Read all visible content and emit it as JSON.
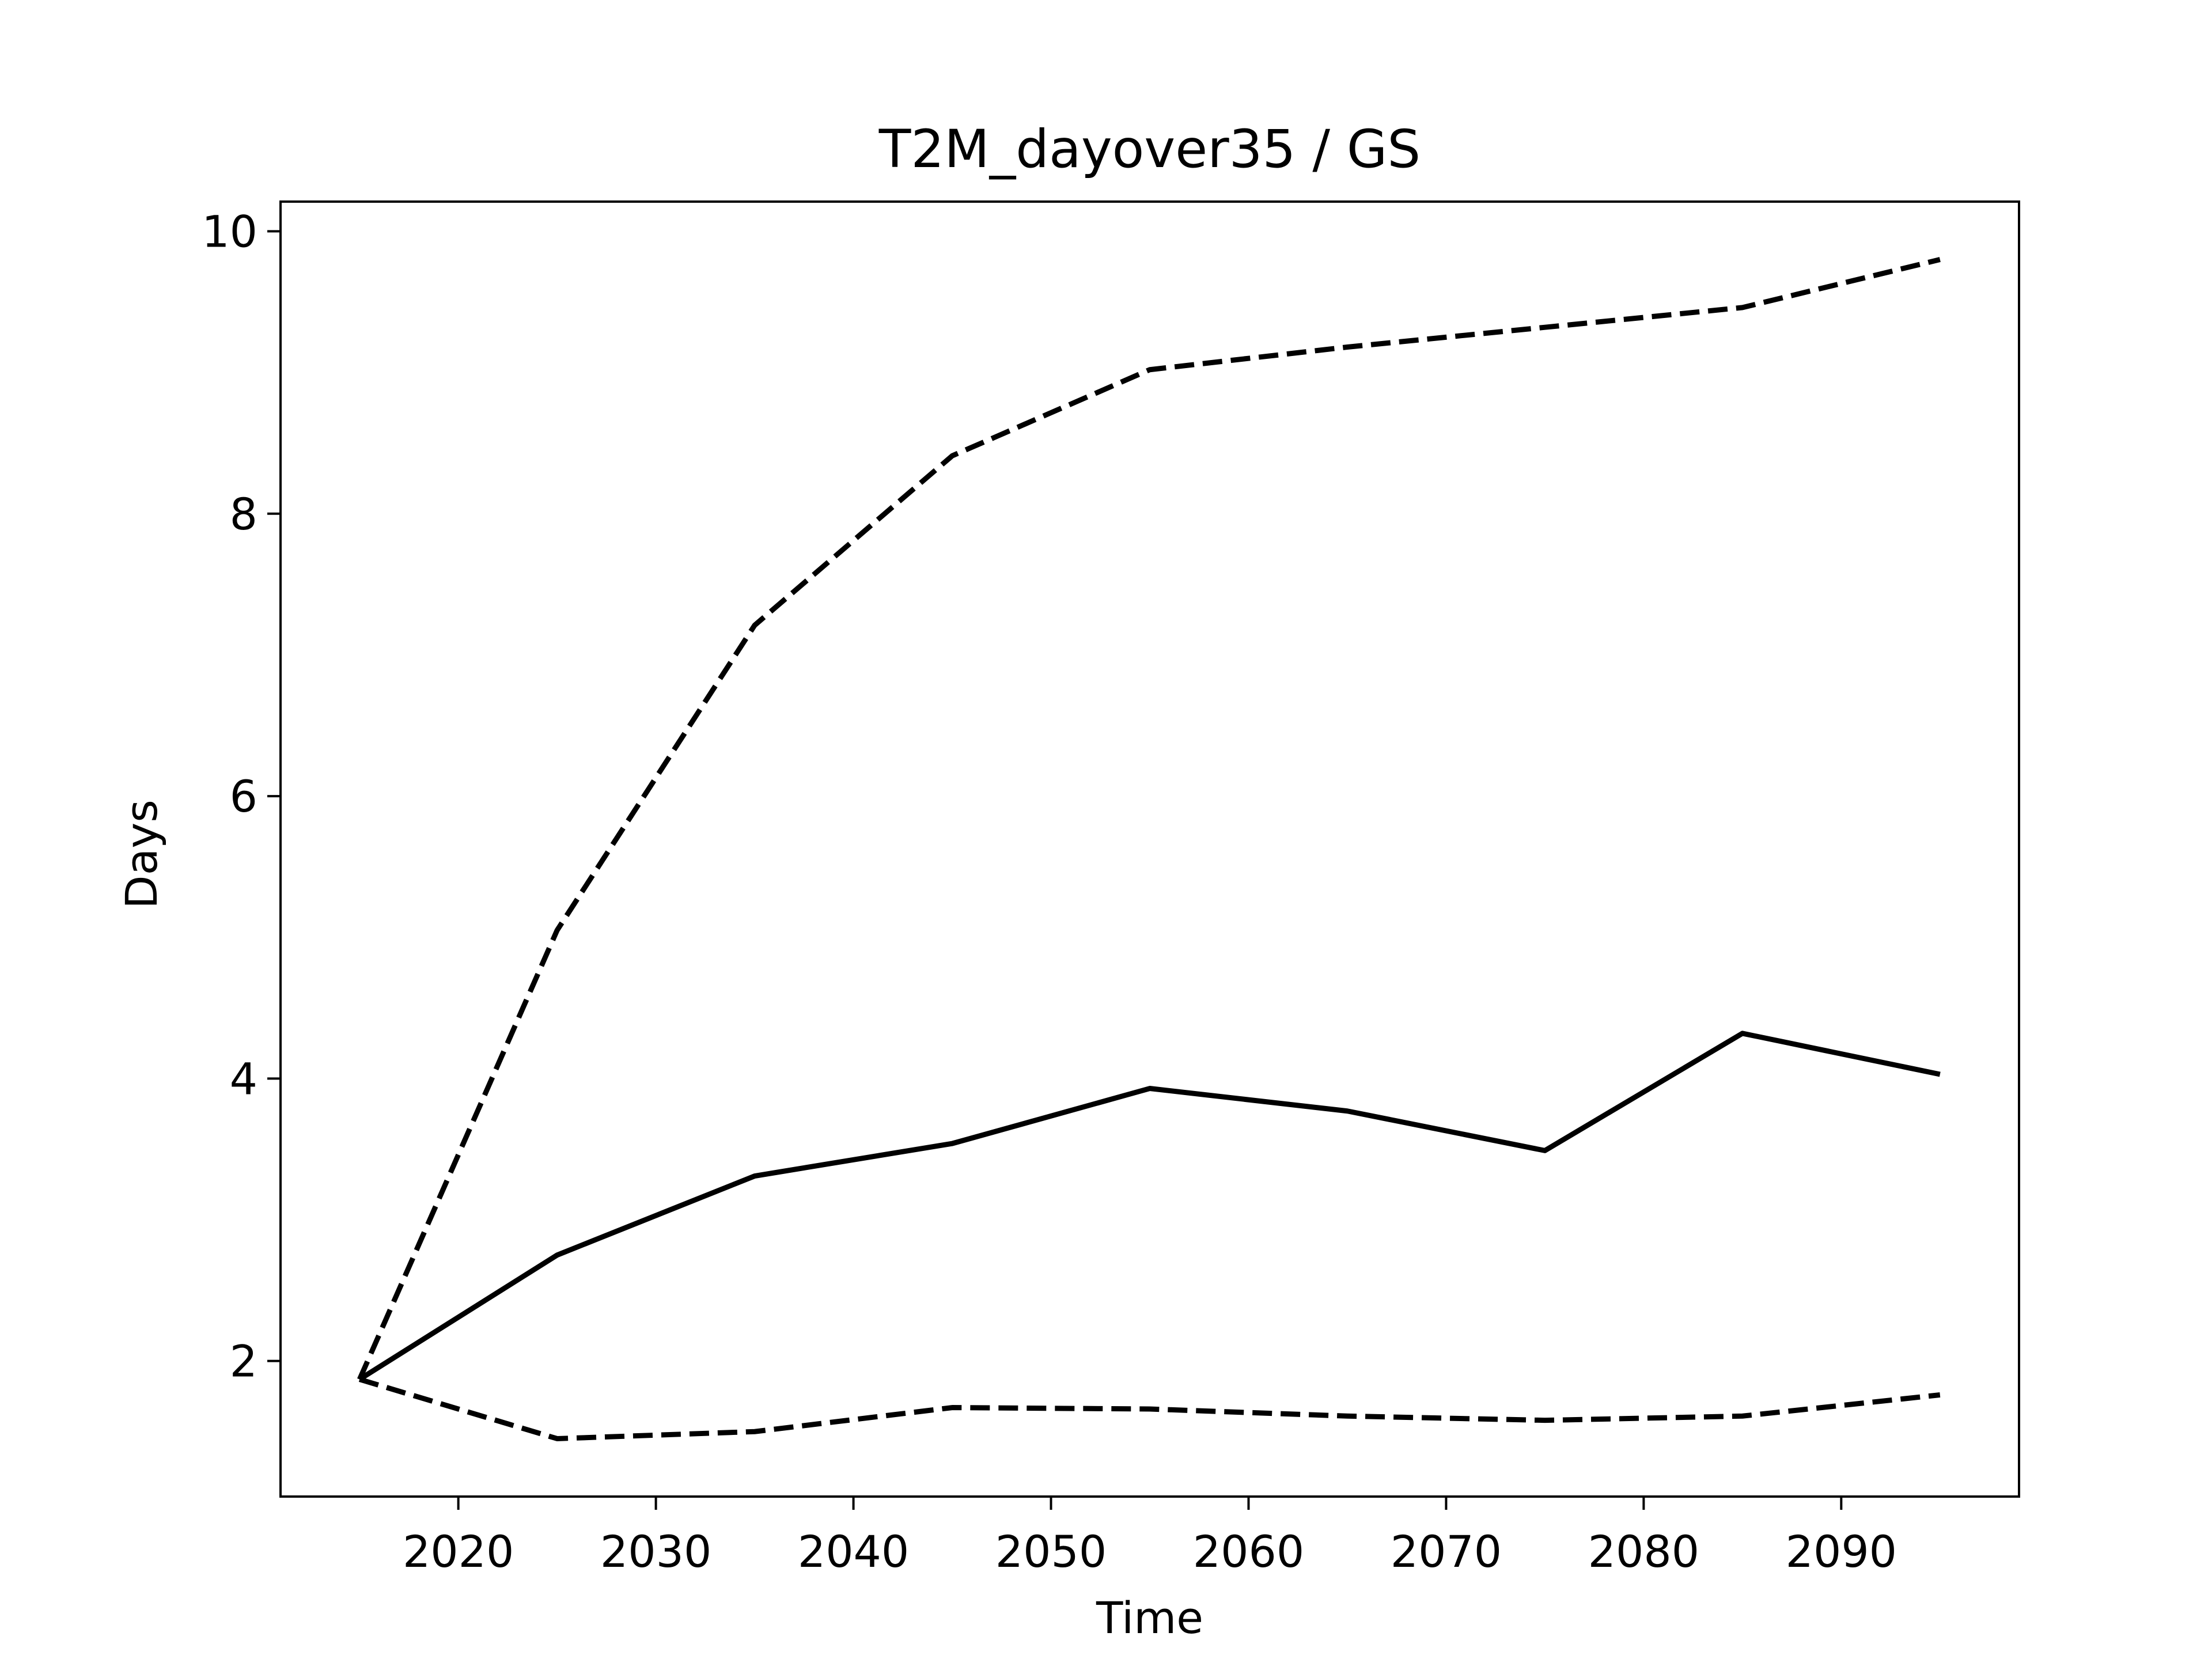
{
  "chart_data": {
    "type": "line",
    "title": "T2M_dayover35 / GS",
    "x_label": "Time",
    "y_label": "Days",
    "x": [
      2015,
      2025,
      2035,
      2045,
      2055,
      2065,
      2075,
      2085,
      2095
    ],
    "series": [
      {
        "color": "#000000",
        "dashed": false,
        "values": [
          1.87,
          2.75,
          3.31,
          3.54,
          3.93,
          3.77,
          3.49,
          4.32,
          4.03
        ]
      },
      {
        "color": "#000000",
        "dashed": true,
        "values": [
          1.87,
          5.05,
          7.21,
          8.41,
          9.02,
          9.18,
          9.32,
          9.46,
          9.8
        ]
      },
      {
        "color": "#000000",
        "dashed": true,
        "values": [
          1.87,
          1.45,
          1.5,
          1.67,
          1.66,
          1.61,
          1.58,
          1.61,
          1.76
        ]
      }
    ],
    "xlim": [
      2011,
      2099
    ],
    "xticks": [
      2020,
      2030,
      2040,
      2050,
      2060,
      2070,
      2080,
      2090
    ],
    "ylim": [
      1.04,
      10.21
    ],
    "yticks": [
      2,
      4,
      6,
      8,
      10
    ],
    "grid": false
  }
}
